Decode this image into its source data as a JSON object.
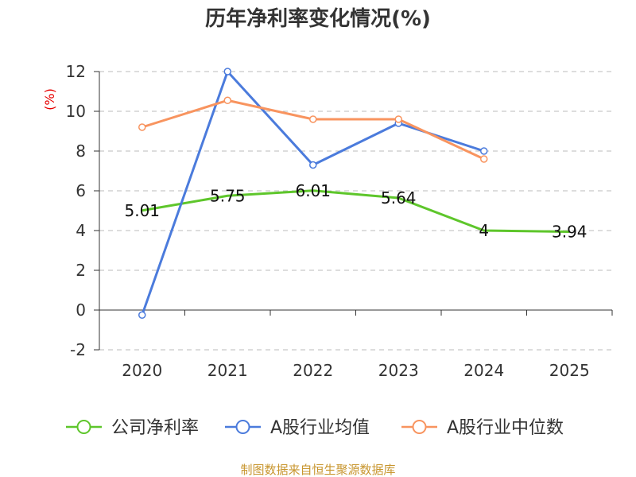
{
  "chart_data": {
    "type": "line",
    "title": "历年净利率变化情况(%)",
    "xlabel": "",
    "ylabel": "(%)",
    "categories": [
      "2020",
      "2021",
      "2022",
      "2023",
      "2024",
      "2025"
    ],
    "ylim": [
      -2,
      12
    ],
    "yticks": [
      -2,
      0,
      2,
      4,
      6,
      8,
      10,
      12
    ],
    "grid": true,
    "legend_position": "bottom",
    "series": [
      {
        "name": "公司净利率",
        "color": "#5ec62b",
        "values": [
          5.01,
          5.75,
          6.01,
          5.64,
          4,
          3.94
        ],
        "data_labels": true
      },
      {
        "name": "A股行业均值",
        "color": "#4b7bdc",
        "values": [
          -0.25,
          12,
          7.3,
          9.4,
          8,
          null
        ],
        "data_labels": false
      },
      {
        "name": "A股行业中位数",
        "color": "#f8945f",
        "values": [
          9.2,
          10.55,
          9.6,
          9.6,
          7.6,
          null
        ],
        "data_labels": false
      }
    ]
  },
  "footer": {
    "source": "制图数据来自恒生聚源数据库"
  }
}
